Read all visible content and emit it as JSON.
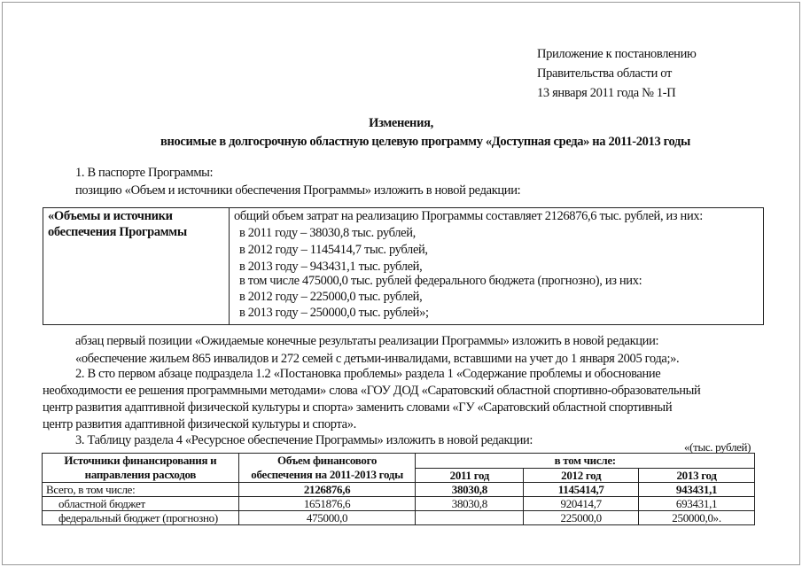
{
  "header_note": [
    "Приложение к постановлению",
    "Правительства области от",
    "13 января 2011 года № 1-П"
  ],
  "title": [
    "Изменения,",
    "вносимые в долгосрочную областную целевую программу «Доступная среда» на 2011-2013 годы"
  ],
  "item1": {
    "heading": "1. В паспорте Программы:",
    "intro": "позицию «Объем и источники обеспечения Программы» изложить в новой редакции:",
    "box_label": [
      "«Объемы и источники",
      "обеспечения Программы"
    ],
    "box_lines": [
      "общий объем затрат на реализацию Программы составляет 2126876,6 тыс. рублей, из них:",
      "в 2011 году – 38030,8 тыс. рублей,",
      "в 2012 году – 1145414,7 тыс. рублей,",
      "в 2013 году – 943431,1 тыс. рублей,",
      "в том числе 475000,0 тыс. рублей федерального бюджета (прогнозно), из них:",
      "в 2012 году – 225000,0 тыс. рублей,",
      "в 2013 году – 250000,0 тыс. рублей»;"
    ],
    "after": [
      "абзац первый позиции «Ожидаемые конечные результаты реализации Программы» изложить в новой редакции:",
      "«обеспечение жильем 865 инвалидов и 272 семей с детьми-инвалидами, вставшими на учет до 1 января 2005 года;»."
    ]
  },
  "item2": [
    "2. В сто первом абзаце подраздела 1.2 «Постановка проблемы» раздела 1 «Содержание проблемы и обоснование",
    "необходимости ее решения программными методами» слова «ГОУ ДОД «Саратовский областной спортивно-образовательный",
    "центр развития адаптивной физической культуры и спорта» заменить словами «ГУ «Саратовский областной спортивный",
    "центр развития адаптивной физической культуры и спорта»."
  ],
  "item3": {
    "text": "3. Таблицу раздела 4 «Ресурсное обеспечение Программы» изложить в новой редакции:",
    "units": "«(тыс. рублей)",
    "headers": {
      "source": [
        "Источники финансирования и",
        "направления расходов"
      ],
      "total": [
        "Объем финансового",
        "обеспечения на 2011-2013 годы"
      ],
      "including": "в том числе:",
      "years": [
        "2011 год",
        "2012 год",
        "2013 год"
      ]
    },
    "rows": [
      {
        "label": "Всего, в том числе:",
        "total": "2126876,6",
        "y2011": "38030,8",
        "y2012": "1145414,7",
        "y2013": "943431,1"
      },
      {
        "label": "областной бюджет",
        "total": "1651876,6",
        "y2011": "38030,8",
        "y2012": "920414,7",
        "y2013": "693431,1"
      },
      {
        "label": "федеральный бюджет (прогнозно)",
        "total": "475000,0",
        "y2011": "",
        "y2012": "225000,0",
        "y2013": "250000,0»."
      }
    ]
  }
}
